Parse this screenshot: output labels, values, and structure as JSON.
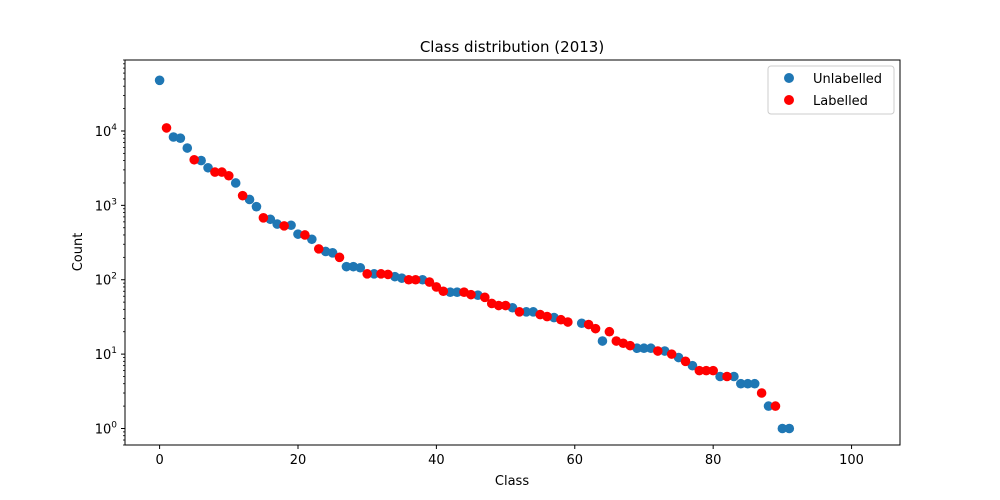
{
  "chart_data": {
    "type": "scatter",
    "title": "Class distribution (2013)",
    "xlabel": "Class",
    "ylabel": "Count",
    "xlim": [
      -5,
      107
    ],
    "ylim": [
      0.6,
      90000
    ],
    "yscale": "log",
    "x_ticks": [
      0,
      20,
      40,
      60,
      80,
      100
    ],
    "y_ticks": [
      {
        "value": 1,
        "base": "10",
        "exp": "0"
      },
      {
        "value": 10,
        "base": "10",
        "exp": "1"
      },
      {
        "value": 100,
        "base": "10",
        "exp": "2"
      },
      {
        "value": 1000,
        "base": "10",
        "exp": "3"
      },
      {
        "value": 10000,
        "base": "10",
        "exp": "4"
      }
    ],
    "grid": false,
    "legend": "top-right",
    "series": [
      {
        "name": "Unlabelled",
        "color": "#1f77b4",
        "points": [
          [
            0,
            48000
          ],
          [
            2,
            8300
          ],
          [
            3,
            8000
          ],
          [
            4,
            5900
          ],
          [
            6,
            4000
          ],
          [
            7,
            3200
          ],
          [
            11,
            2000
          ],
          [
            13,
            1200
          ],
          [
            14,
            960
          ],
          [
            16,
            650
          ],
          [
            17,
            560
          ],
          [
            19,
            540
          ],
          [
            20,
            410
          ],
          [
            22,
            350
          ],
          [
            24,
            240
          ],
          [
            25,
            230
          ],
          [
            27,
            150
          ],
          [
            28,
            150
          ],
          [
            29,
            145
          ],
          [
            31,
            120
          ],
          [
            34,
            110
          ],
          [
            35,
            105
          ],
          [
            38,
            100
          ],
          [
            42,
            68
          ],
          [
            43,
            68
          ],
          [
            46,
            62
          ],
          [
            51,
            42
          ],
          [
            53,
            37
          ],
          [
            54,
            37
          ],
          [
            57,
            31
          ],
          [
            61,
            26
          ],
          [
            64,
            15
          ],
          [
            69,
            12
          ],
          [
            70,
            12
          ],
          [
            71,
            12
          ],
          [
            73,
            11
          ],
          [
            75,
            9
          ],
          [
            77,
            7
          ],
          [
            81,
            5
          ],
          [
            83,
            5
          ],
          [
            84,
            4
          ],
          [
            85,
            4
          ],
          [
            86,
            4
          ],
          [
            88,
            2
          ],
          [
            90,
            1
          ],
          [
            91,
            1
          ]
        ]
      },
      {
        "name": "Labelled",
        "color": "#ff0000",
        "points": [
          [
            1,
            11000
          ],
          [
            5,
            4100
          ],
          [
            8,
            2800
          ],
          [
            9,
            2800
          ],
          [
            10,
            2500
          ],
          [
            12,
            1350
          ],
          [
            15,
            680
          ],
          [
            18,
            530
          ],
          [
            21,
            400
          ],
          [
            23,
            260
          ],
          [
            26,
            200
          ],
          [
            30,
            120
          ],
          [
            32,
            120
          ],
          [
            33,
            118
          ],
          [
            36,
            100
          ],
          [
            37,
            100
          ],
          [
            39,
            93
          ],
          [
            40,
            80
          ],
          [
            41,
            70
          ],
          [
            44,
            68
          ],
          [
            45,
            63
          ],
          [
            47,
            58
          ],
          [
            48,
            48
          ],
          [
            49,
            45
          ],
          [
            50,
            45
          ],
          [
            52,
            37
          ],
          [
            55,
            34
          ],
          [
            56,
            32
          ],
          [
            58,
            29
          ],
          [
            59,
            27
          ],
          [
            62,
            25
          ],
          [
            63,
            22
          ],
          [
            65,
            20
          ],
          [
            66,
            15
          ],
          [
            67,
            14
          ],
          [
            68,
            13
          ],
          [
            72,
            11
          ],
          [
            74,
            10
          ],
          [
            76,
            8
          ],
          [
            78,
            6
          ],
          [
            79,
            6
          ],
          [
            80,
            6
          ],
          [
            82,
            5
          ],
          [
            87,
            3
          ],
          [
            89,
            2
          ]
        ]
      }
    ]
  }
}
